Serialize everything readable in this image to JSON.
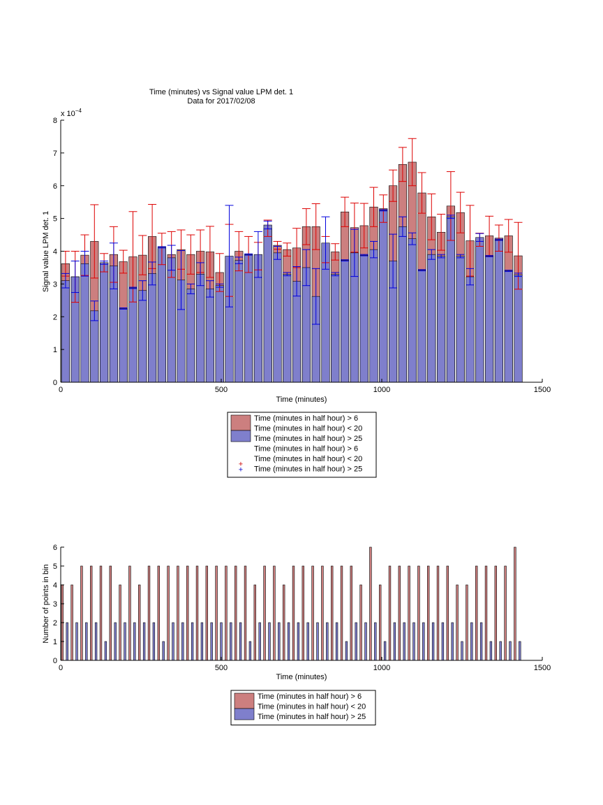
{
  "chart_data": [
    {
      "type": "bar",
      "title": "Time (minutes) vs Signal value LPM det. 1",
      "subtitle": "Data for 2017/02/08",
      "xlabel": "Time (minutes)",
      "ylabel": "Signal value LPM det. 1",
      "y_exponent_label": "x 10",
      "y_exponent": "−4",
      "xlim": [
        0,
        1500
      ],
      "ylim": [
        0,
        8
      ],
      "y_scale": 0.0001,
      "xticks": [
        0,
        500,
        1000,
        1500
      ],
      "yticks": [
        0,
        1,
        2,
        3,
        4,
        5,
        6,
        7,
        8
      ],
      "grid": false,
      "legend_position": "below",
      "bar_width": 25,
      "x": [
        15,
        45,
        75,
        105,
        135,
        165,
        195,
        225,
        255,
        285,
        315,
        345,
        375,
        405,
        435,
        465,
        495,
        525,
        555,
        585,
        615,
        645,
        675,
        705,
        735,
        765,
        795,
        825,
        855,
        885,
        915,
        945,
        975,
        1005,
        1035,
        1065,
        1095,
        1125,
        1155,
        1185,
        1215,
        1245,
        1275,
        1305,
        1335,
        1365,
        1395,
        1425
      ],
      "series": [
        {
          "name": "Time (minutes in half hour) > 6\nTime (minutes in half hour) < 20",
          "color": "#cc7f7f",
          "values": [
            3.62,
            3.22,
            3.88,
            4.3,
            3.65,
            3.9,
            3.68,
            3.83,
            3.88,
            4.45,
            4.07,
            3.9,
            4.05,
            3.9,
            4.0,
            3.98,
            3.35,
            3.72,
            4.0,
            3.9,
            3.85,
            4.7,
            4.18,
            4.05,
            4.1,
            4.75,
            4.75,
            4.05,
            3.98,
            5.2,
            4.72,
            4.78,
            5.35,
            5.3,
            6.0,
            6.65,
            6.72,
            5.78,
            5.05,
            4.58,
            5.38,
            5.18,
            4.32,
            4.35,
            4.47,
            4.4,
            4.47,
            3.86
          ],
          "errors": [
            0.38,
            0.78,
            0.62,
            1.12,
            0.28,
            0.85,
            0.35,
            1.38,
            0.6,
            0.98,
            0.48,
            0.7,
            0.6,
            0.6,
            0.65,
            0.78,
            0.58,
            1.1,
            0.6,
            0.55,
            0.42,
            0.25,
            0.12,
            0.2,
            0.6,
            0.55,
            0.7,
            0.4,
            0.25,
            0.45,
            0.75,
            0.68,
            0.6,
            0.42,
            0.48,
            0.52,
            0.72,
            0.62,
            0.7,
            0.55,
            1.05,
            0.62,
            1.08,
            0.2,
            0.6,
            0.4,
            0.5,
            1.02
          ]
        },
        {
          "name": "Time (minutes in half hour) > 25",
          "color": "#7f7fcc",
          "values": [
            3.1,
            3.22,
            3.62,
            2.18,
            3.65,
            3.55,
            2.25,
            2.88,
            2.8,
            3.32,
            4.12,
            3.8,
            3.12,
            2.85,
            3.3,
            2.85,
            2.95,
            3.85,
            3.72,
            3.9,
            3.9,
            4.8,
            3.95,
            3.3,
            3.08,
            3.5,
            2.62,
            4.25,
            3.3,
            3.72,
            3.95,
            3.88,
            4.05,
            5.25,
            3.7,
            4.75,
            4.38,
            3.42,
            3.9,
            3.85,
            5.05,
            3.85,
            3.22,
            4.42,
            3.85,
            4.35,
            3.4,
            3.28
          ],
          "errors": [
            0.22,
            0.48,
            0.38,
            0.3,
            0.05,
            0.7,
            0.02,
            0.02,
            0.3,
            0.35,
            0.02,
            0.38,
            0.9,
            0.15,
            0.35,
            0.25,
            0.05,
            1.55,
            0.1,
            0.02,
            0.7,
            0.12,
            0.2,
            0.05,
            0.45,
            0.55,
            0.85,
            0.8,
            0.05,
            0.02,
            0.72,
            0.02,
            0.25,
            0.02,
            0.82,
            0.3,
            0.18,
            0.02,
            0.15,
            0.05,
            0.05,
            0.05,
            0.25,
            0.12,
            0.02,
            0.02,
            0.02,
            0.05
          ]
        }
      ],
      "legend": [
        "Time (minutes in half hour) > 6",
        "Time (minutes in half hour) < 20",
        "Time (minutes in half hour) > 25",
        "Time (minutes in half hour) > 6",
        "Time (minutes in half hour) < 20",
        "Time (minutes in half hour) > 25"
      ]
    },
    {
      "type": "bar",
      "xlabel": "Time (minutes)",
      "ylabel": "Number of points in bin",
      "xlim": [
        0,
        1500
      ],
      "ylim": [
        0,
        6
      ],
      "xticks": [
        0,
        500,
        1000,
        1500
      ],
      "yticks": [
        0,
        1,
        2,
        3,
        4,
        5,
        6
      ],
      "grid": false,
      "legend_position": "below",
      "bar_width": 6,
      "x": [
        5,
        35,
        65,
        95,
        125,
        155,
        185,
        215,
        245,
        275,
        305,
        335,
        365,
        395,
        425,
        455,
        485,
        515,
        545,
        575,
        605,
        635,
        665,
        695,
        725,
        755,
        785,
        815,
        845,
        875,
        905,
        935,
        965,
        995,
        1025,
        1055,
        1085,
        1115,
        1145,
        1175,
        1205,
        1235,
        1265,
        1295,
        1325,
        1355,
        1385,
        1415
      ],
      "series": [
        {
          "name": "Time (minutes in half hour) > 6\nTime (minutes in half hour) < 20",
          "color": "#cc7f7f",
          "offset": 0,
          "values": [
            4,
            4,
            5,
            5,
            5,
            5,
            4,
            5,
            4,
            5,
            5,
            5,
            5,
            5,
            5,
            5,
            5,
            5,
            5,
            5,
            4,
            5,
            5,
            4,
            5,
            5,
            5,
            5,
            5,
            5,
            5,
            4,
            6,
            4,
            5,
            5,
            5,
            5,
            5,
            5,
            5,
            4,
            4,
            5,
            5,
            5,
            5,
            6
          ]
        },
        {
          "name": "Time (minutes in half hour) > 25",
          "color": "#7f7fcc",
          "offset": 15,
          "values": [
            2,
            2,
            2,
            2,
            1,
            2,
            2,
            2,
            2,
            2,
            1,
            2,
            2,
            2,
            2,
            2,
            2,
            2,
            2,
            1,
            2,
            2,
            2,
            2,
            2,
            2,
            2,
            2,
            2,
            1,
            2,
            2,
            2,
            1,
            2,
            2,
            2,
            2,
            2,
            2,
            2,
            1,
            2,
            2,
            1,
            1,
            1,
            1
          ]
        }
      ],
      "legend": [
        "Time (minutes in half hour) > 6",
        "Time (minutes in half hour) < 20",
        "Time (minutes in half hour) > 25"
      ]
    }
  ]
}
